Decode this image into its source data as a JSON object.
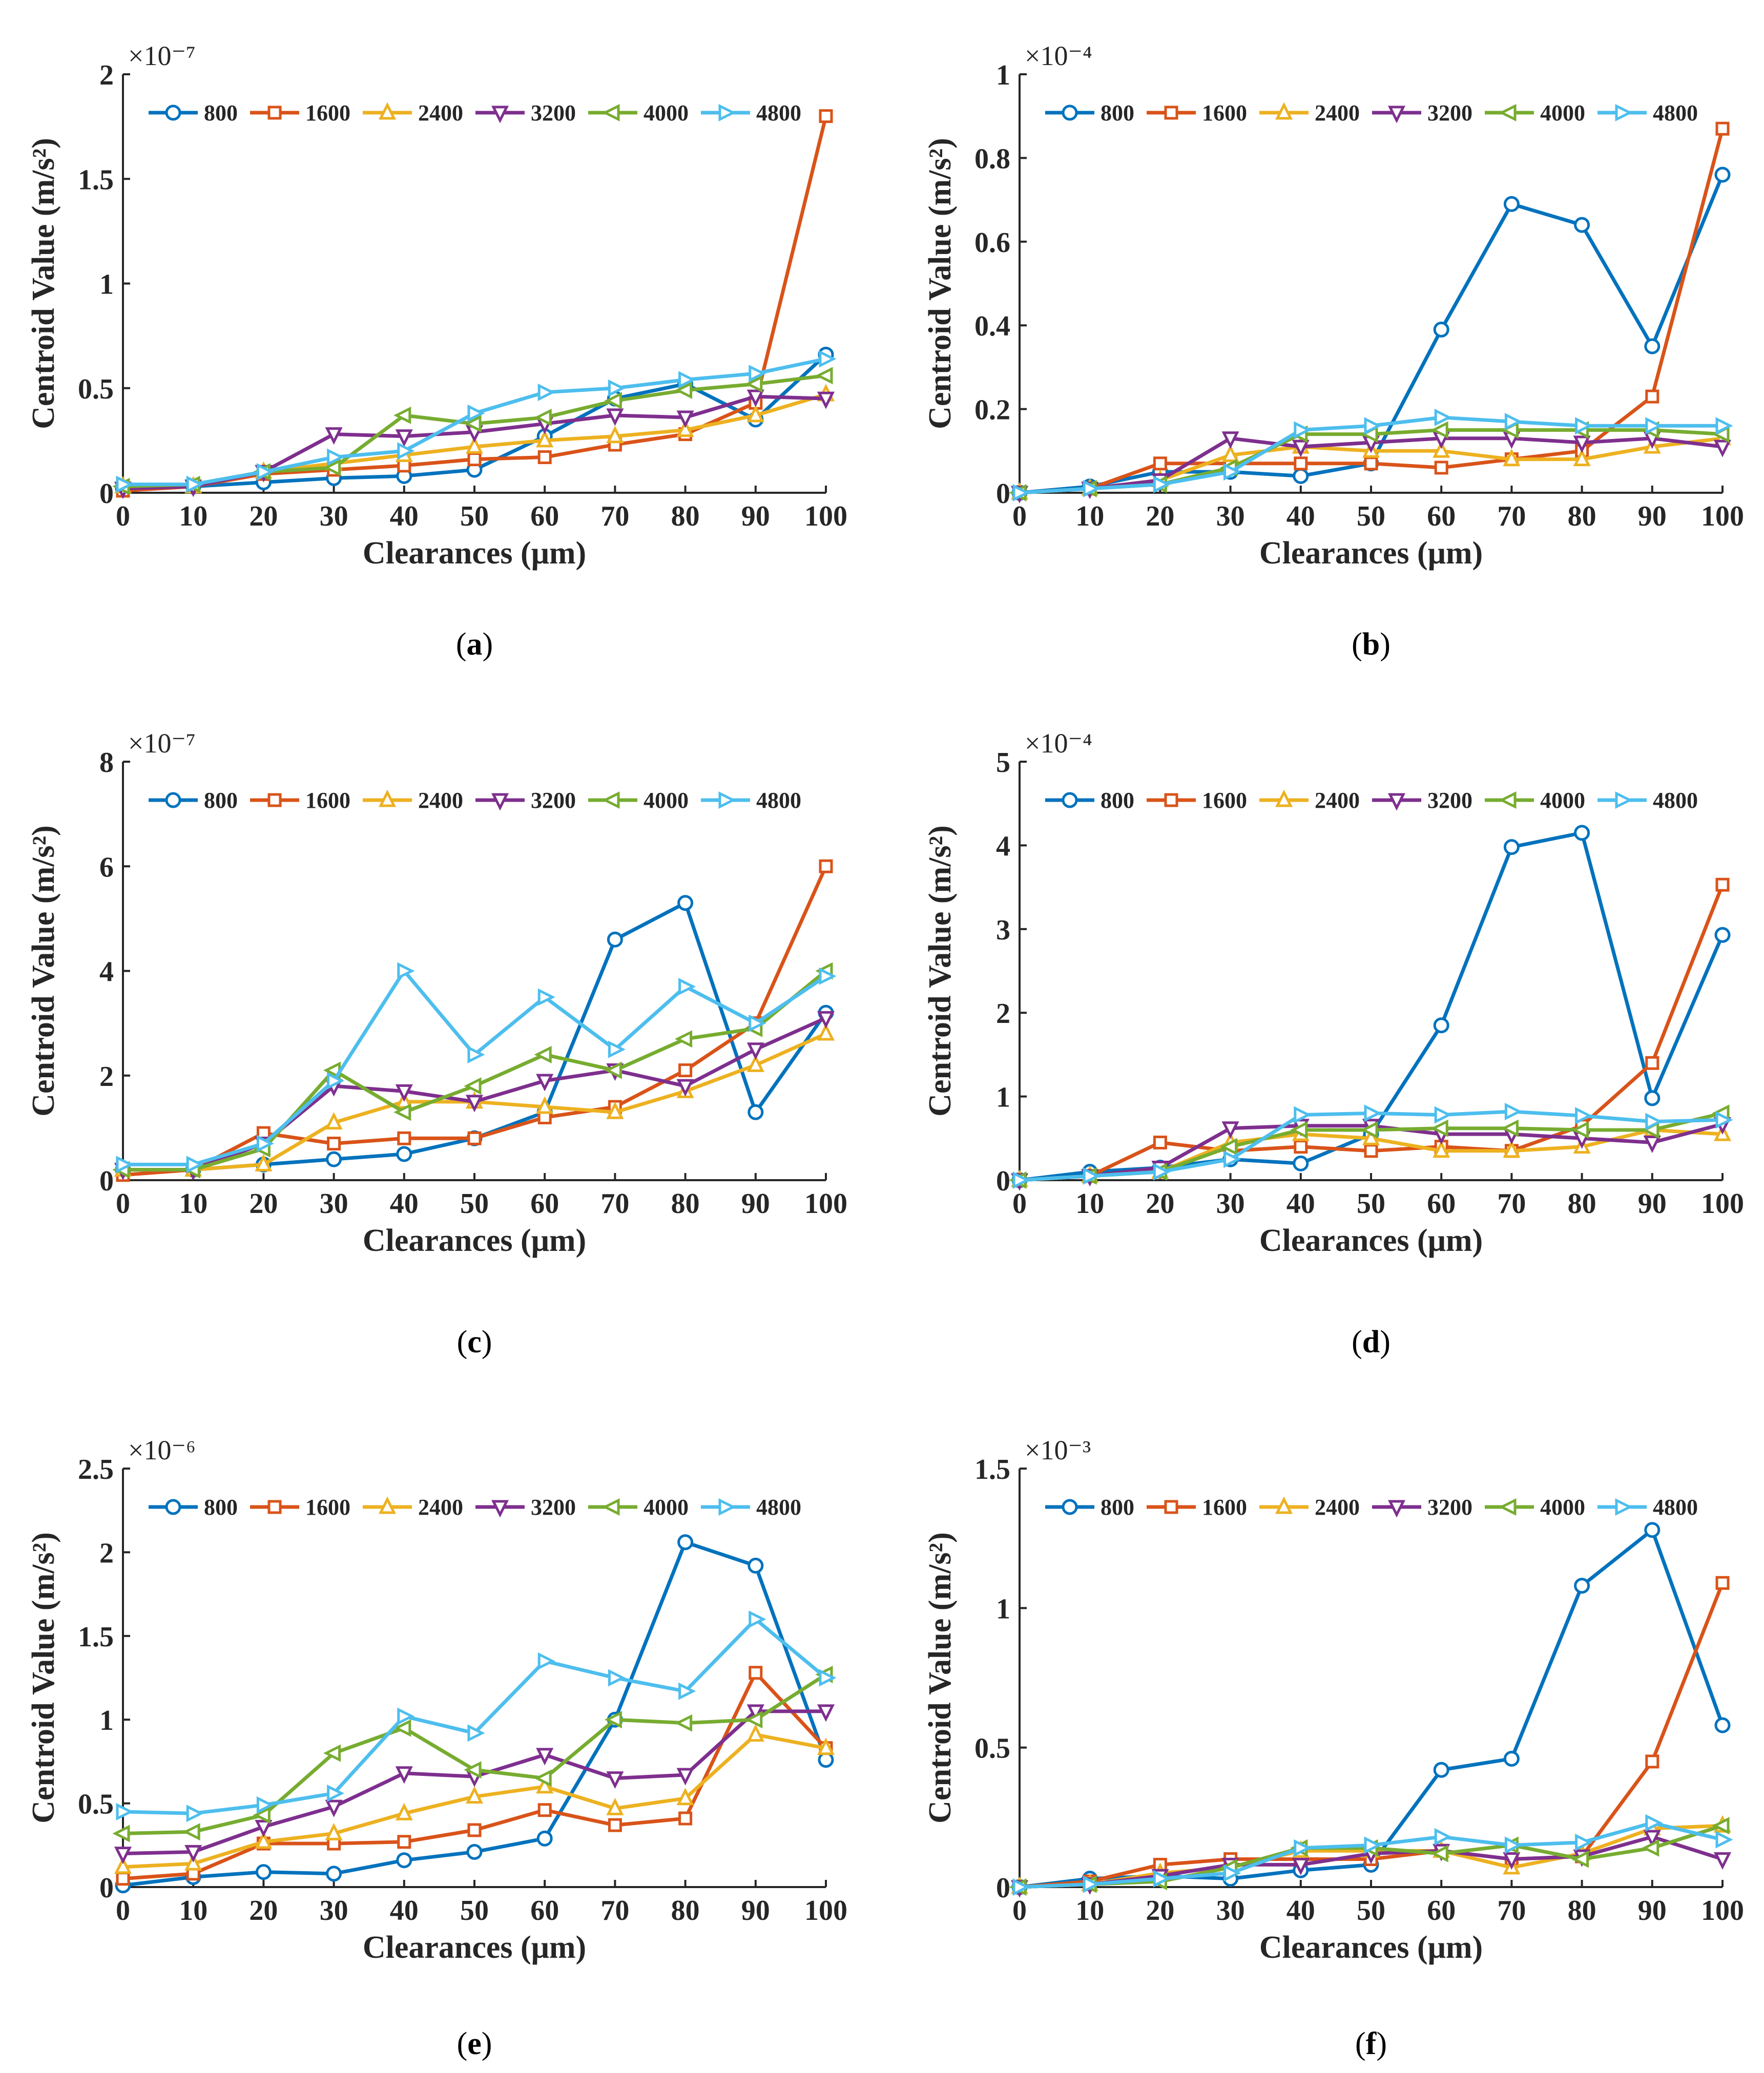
{
  "chart_data": [
    {
      "id": "a",
      "type": "line",
      "caption": "a",
      "xlabel": "Clearances (μm)",
      "ylabel": "Centroid Value (m/s²)",
      "exponent": "×10⁻⁷",
      "x": [
        0,
        10,
        20,
        30,
        40,
        50,
        60,
        70,
        80,
        90,
        100
      ],
      "xticks": [
        "0",
        "10",
        "20",
        "30",
        "40",
        "50",
        "60",
        "70",
        "80",
        "90",
        "100"
      ],
      "ylim": [
        0,
        2
      ],
      "yticks": [
        0,
        0.5,
        1,
        1.5,
        2
      ],
      "ytick_labels": [
        "0",
        "0.5",
        "1",
        "1.5",
        "2"
      ],
      "legend": "top-left",
      "series": [
        {
          "name": "800",
          "values": [
            0.02,
            0.03,
            0.05,
            0.07,
            0.08,
            0.11,
            0.27,
            0.45,
            0.52,
            0.35,
            0.66
          ]
        },
        {
          "name": "1600",
          "values": [
            0.01,
            0.03,
            0.09,
            0.11,
            0.13,
            0.16,
            0.17,
            0.23,
            0.28,
            0.43,
            1.8
          ]
        },
        {
          "name": "2400",
          "values": [
            0.03,
            0.03,
            0.1,
            0.14,
            0.18,
            0.22,
            0.25,
            0.27,
            0.3,
            0.37,
            0.47
          ]
        },
        {
          "name": "3200",
          "values": [
            0.02,
            0.03,
            0.1,
            0.28,
            0.27,
            0.29,
            0.33,
            0.37,
            0.36,
            0.46,
            0.45
          ]
        },
        {
          "name": "4000",
          "values": [
            0.03,
            0.04,
            0.1,
            0.12,
            0.37,
            0.33,
            0.36,
            0.44,
            0.49,
            0.52,
            0.56
          ]
        },
        {
          "name": "4800",
          "values": [
            0.04,
            0.04,
            0.1,
            0.17,
            0.2,
            0.38,
            0.48,
            0.5,
            0.54,
            0.57,
            0.64
          ]
        }
      ]
    },
    {
      "id": "b",
      "type": "line",
      "caption": "b",
      "xlabel": "Clearances (μm)",
      "ylabel": "Centroid Value (m/s²)",
      "exponent": "×10⁻⁴",
      "x": [
        0,
        10,
        20,
        30,
        40,
        50,
        60,
        70,
        80,
        90,
        100
      ],
      "xticks": [
        "0",
        "10",
        "20",
        "30",
        "40",
        "50",
        "60",
        "70",
        "80",
        "90",
        "100"
      ],
      "ylim": [
        0,
        1
      ],
      "yticks": [
        0,
        0.2,
        0.4,
        0.6,
        0.8,
        1
      ],
      "ytick_labels": [
        "0",
        "0.2",
        "0.4",
        "0.6",
        "0.8",
        "1"
      ],
      "legend": "top",
      "series": [
        {
          "name": "800",
          "values": [
            0.0,
            0.015,
            0.05,
            0.05,
            0.04,
            0.07,
            0.39,
            0.69,
            0.64,
            0.35,
            0.76
          ]
        },
        {
          "name": "1600",
          "values": [
            0.0,
            0.01,
            0.07,
            0.07,
            0.07,
            0.07,
            0.06,
            0.08,
            0.1,
            0.23,
            0.87
          ]
        },
        {
          "name": "2400",
          "values": [
            0.0,
            0.01,
            0.03,
            0.09,
            0.11,
            0.1,
            0.1,
            0.08,
            0.08,
            0.11,
            0.13
          ]
        },
        {
          "name": "3200",
          "values": [
            0.0,
            0.01,
            0.03,
            0.13,
            0.11,
            0.12,
            0.13,
            0.13,
            0.12,
            0.13,
            0.11
          ]
        },
        {
          "name": "4000",
          "values": [
            0.0,
            0.01,
            0.02,
            0.06,
            0.14,
            0.14,
            0.15,
            0.15,
            0.15,
            0.15,
            0.14
          ]
        },
        {
          "name": "4800",
          "values": [
            0.0,
            0.01,
            0.02,
            0.05,
            0.15,
            0.16,
            0.18,
            0.17,
            0.16,
            0.16,
            0.16
          ]
        }
      ]
    },
    {
      "id": "c",
      "type": "line",
      "caption": "c",
      "xlabel": "Clearances (μm)",
      "ylabel": "Centroid Value (m/s²)",
      "exponent": "×10⁻⁷",
      "x": [
        0,
        10,
        20,
        30,
        40,
        50,
        60,
        70,
        80,
        90,
        100
      ],
      "xticks": [
        "0",
        "10",
        "20",
        "30",
        "40",
        "50",
        "60",
        "70",
        "80",
        "90",
        "100"
      ],
      "ylim": [
        0,
        8
      ],
      "yticks": [
        0,
        2,
        4,
        6,
        8
      ],
      "ytick_labels": [
        "0",
        "2",
        "4",
        "6",
        "8"
      ],
      "legend": "top-left",
      "series": [
        {
          "name": "800",
          "values": [
            0.2,
            0.2,
            0.3,
            0.4,
            0.5,
            0.8,
            1.3,
            4.6,
            5.3,
            1.3,
            3.2
          ]
        },
        {
          "name": "1600",
          "values": [
            0.1,
            0.2,
            0.9,
            0.7,
            0.8,
            0.8,
            1.2,
            1.4,
            2.1,
            3.0,
            6.0
          ]
        },
        {
          "name": "2400",
          "values": [
            0.2,
            0.2,
            0.3,
            1.1,
            1.5,
            1.5,
            1.4,
            1.3,
            1.7,
            2.2,
            2.8
          ]
        },
        {
          "name": "3200",
          "values": [
            0.2,
            0.2,
            0.7,
            1.8,
            1.7,
            1.5,
            1.9,
            2.1,
            1.8,
            2.5,
            3.1
          ]
        },
        {
          "name": "4000",
          "values": [
            0.2,
            0.2,
            0.6,
            2.1,
            1.3,
            1.8,
            2.4,
            2.1,
            2.7,
            2.9,
            4.0
          ]
        },
        {
          "name": "4800",
          "values": [
            0.3,
            0.3,
            0.7,
            1.9,
            4.0,
            2.4,
            3.5,
            2.5,
            3.7,
            3.0,
            3.9
          ]
        }
      ]
    },
    {
      "id": "d",
      "type": "line",
      "caption": "d",
      "xlabel": "Clearances (μm)",
      "ylabel": "Centroid Value (m/s²)",
      "exponent": "×10⁻⁴",
      "x": [
        0,
        10,
        20,
        30,
        40,
        50,
        60,
        70,
        80,
        90,
        100
      ],
      "xticks": [
        "0",
        "10",
        "20",
        "30",
        "40",
        "50",
        "60",
        "70",
        "80",
        "90",
        "100"
      ],
      "ylim": [
        0,
        5
      ],
      "yticks": [
        0,
        1,
        2,
        3,
        4,
        5
      ],
      "ytick_labels": [
        "0",
        "1",
        "2",
        "3",
        "4",
        "5"
      ],
      "legend": "top",
      "series": [
        {
          "name": "800",
          "values": [
            0.0,
            0.1,
            0.15,
            0.25,
            0.2,
            0.55,
            1.85,
            3.98,
            4.15,
            0.98,
            2.93
          ]
        },
        {
          "name": "1600",
          "values": [
            0.0,
            0.05,
            0.45,
            0.35,
            0.4,
            0.35,
            0.4,
            0.35,
            0.65,
            1.4,
            3.53
          ]
        },
        {
          "name": "2400",
          "values": [
            0.0,
            0.05,
            0.1,
            0.45,
            0.55,
            0.5,
            0.35,
            0.35,
            0.4,
            0.6,
            0.55
          ]
        },
        {
          "name": "3200",
          "values": [
            0.0,
            0.05,
            0.15,
            0.62,
            0.65,
            0.65,
            0.55,
            0.55,
            0.5,
            0.45,
            0.67
          ]
        },
        {
          "name": "4000",
          "values": [
            0.0,
            0.05,
            0.1,
            0.4,
            0.6,
            0.6,
            0.62,
            0.62,
            0.6,
            0.6,
            0.8
          ]
        },
        {
          "name": "4800",
          "values": [
            0.0,
            0.05,
            0.1,
            0.25,
            0.78,
            0.8,
            0.78,
            0.82,
            0.77,
            0.7,
            0.72
          ]
        }
      ]
    },
    {
      "id": "e",
      "type": "line",
      "caption": "e",
      "xlabel": "Clearances (μm)",
      "ylabel": "Centroid Value (m/s²)",
      "exponent": "×10⁻⁶",
      "x": [
        0,
        10,
        20,
        30,
        40,
        50,
        60,
        70,
        80,
        90,
        100
      ],
      "xticks": [
        "0",
        "10",
        "20",
        "30",
        "40",
        "50",
        "60",
        "70",
        "80",
        "90",
        "100"
      ],
      "ylim": [
        0,
        2.5
      ],
      "yticks": [
        0,
        0.5,
        1,
        1.5,
        2,
        2.5
      ],
      "ytick_labels": [
        "0",
        "0.5",
        "1",
        "1.5",
        "2",
        "2.5"
      ],
      "legend": "top",
      "series": [
        {
          "name": "800",
          "values": [
            0.01,
            0.06,
            0.09,
            0.08,
            0.16,
            0.21,
            0.29,
            1.0,
            2.06,
            1.92,
            0.76
          ]
        },
        {
          "name": "1600",
          "values": [
            0.05,
            0.08,
            0.26,
            0.26,
            0.27,
            0.34,
            0.46,
            0.37,
            0.41,
            1.28,
            0.83
          ]
        },
        {
          "name": "2400",
          "values": [
            0.12,
            0.14,
            0.27,
            0.32,
            0.44,
            0.54,
            0.6,
            0.47,
            0.53,
            0.91,
            0.83
          ]
        },
        {
          "name": "3200",
          "values": [
            0.2,
            0.21,
            0.36,
            0.48,
            0.68,
            0.66,
            0.79,
            0.65,
            0.67,
            1.05,
            1.05
          ]
        },
        {
          "name": "4000",
          "values": [
            0.32,
            0.33,
            0.43,
            0.8,
            0.95,
            0.7,
            0.65,
            1.0,
            0.98,
            1.0,
            1.27
          ]
        },
        {
          "name": "4800",
          "values": [
            0.45,
            0.44,
            0.49,
            0.56,
            1.02,
            0.92,
            1.35,
            1.25,
            1.17,
            1.6,
            1.25
          ]
        }
      ]
    },
    {
      "id": "f",
      "type": "line",
      "caption": "f",
      "xlabel": "Clearances (μm)",
      "ylabel": "Centroid Value (m/s²)",
      "exponent": "×10⁻³",
      "x": [
        0,
        10,
        20,
        30,
        40,
        50,
        60,
        70,
        80,
        90,
        100
      ],
      "xticks": [
        "0",
        "10",
        "20",
        "30",
        "40",
        "50",
        "60",
        "70",
        "80",
        "90",
        "100"
      ],
      "ylim": [
        0,
        1.5
      ],
      "yticks": [
        0,
        0.5,
        1,
        1.5
      ],
      "ytick_labels": [
        "0",
        "0.5",
        "1",
        "1.5"
      ],
      "legend": "top",
      "series": [
        {
          "name": "800",
          "values": [
            0.0,
            0.03,
            0.04,
            0.03,
            0.06,
            0.08,
            0.42,
            0.46,
            1.08,
            1.28,
            0.58
          ]
        },
        {
          "name": "1600",
          "values": [
            0.0,
            0.02,
            0.08,
            0.1,
            0.1,
            0.1,
            0.13,
            0.1,
            0.11,
            0.45,
            1.09
          ]
        },
        {
          "name": "2400",
          "values": [
            0.0,
            0.01,
            0.05,
            0.07,
            0.13,
            0.13,
            0.13,
            0.07,
            0.12,
            0.21,
            0.22
          ]
        },
        {
          "name": "3200",
          "values": [
            0.0,
            0.01,
            0.04,
            0.08,
            0.08,
            0.12,
            0.13,
            0.1,
            0.11,
            0.18,
            0.1
          ]
        },
        {
          "name": "4000",
          "values": [
            0.0,
            0.01,
            0.02,
            0.07,
            0.14,
            0.14,
            0.12,
            0.15,
            0.1,
            0.14,
            0.22
          ]
        },
        {
          "name": "4800",
          "values": [
            0.0,
            0.01,
            0.03,
            0.05,
            0.14,
            0.15,
            0.18,
            0.15,
            0.16,
            0.23,
            0.17
          ]
        }
      ]
    }
  ],
  "colors": {
    "800": "#0072BD",
    "1600": "#D95319",
    "2400": "#EDB120",
    "3200": "#7E2F8E",
    "4000": "#77AC30",
    "4800": "#4DBEEE"
  },
  "markers": {
    "800": "circle",
    "1600": "square",
    "2400": "triangle-up",
    "3200": "triangle-down",
    "4000": "triangle-left",
    "4800": "triangle-right"
  }
}
